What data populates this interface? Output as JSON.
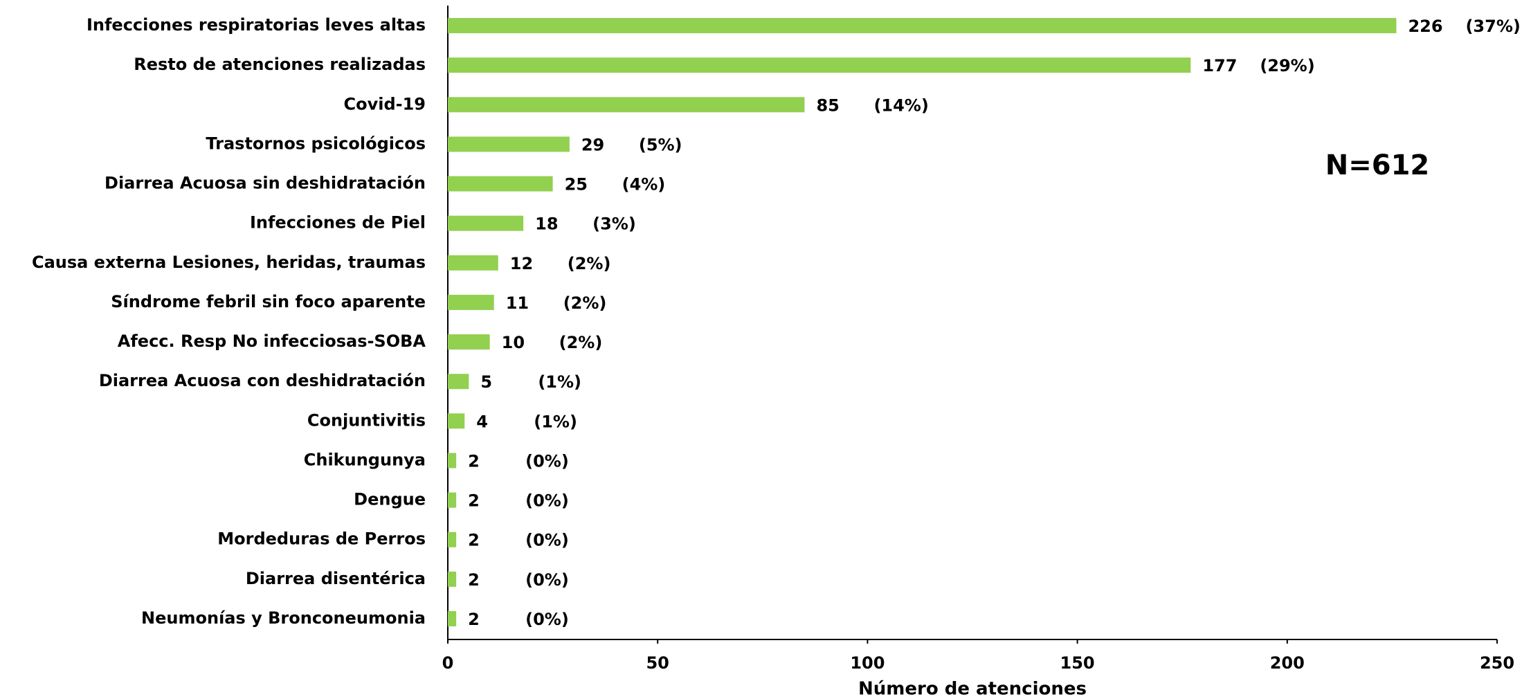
{
  "chart_data": {
    "type": "barh",
    "categories": [
      "Infecciones respiratorias leves altas",
      "Resto de atenciones realizadas",
      "Covid-19",
      "Trastornos psicológicos",
      "Diarrea Acuosa sin deshidratación",
      "Infecciones de Piel",
      "Causa externa Lesiones, heridas, traumas",
      "Síndrome febril sin foco aparente",
      "Afecc. Resp No infecciosas-SOBA",
      "Diarrea Acuosa con deshidratación",
      "Conjuntivitis",
      "Chikungunya",
      "Dengue",
      "Mordeduras de Perros",
      "Diarrea disentérica",
      "Neumonías y Bronconeumonia"
    ],
    "values": [
      226,
      177,
      85,
      29,
      25,
      18,
      12,
      11,
      10,
      5,
      4,
      2,
      2,
      2,
      2,
      2
    ],
    "percent_labels": [
      "(37%)",
      "(29%)",
      "(14%)",
      "(5%)",
      "(4%)",
      "(3%)",
      "(2%)",
      "(2%)",
      "(2%)",
      "(1%)",
      "(1%)",
      "(0%)",
      "(0%)",
      "(0%)",
      "(0%)",
      "(0%)"
    ],
    "color": "#92d050",
    "xlabel": "Número de atenciones",
    "xlim": [
      0,
      250
    ],
    "xticks": [
      0,
      50,
      100,
      150,
      200,
      250
    ],
    "annotation": "N=612",
    "grid": false
  }
}
